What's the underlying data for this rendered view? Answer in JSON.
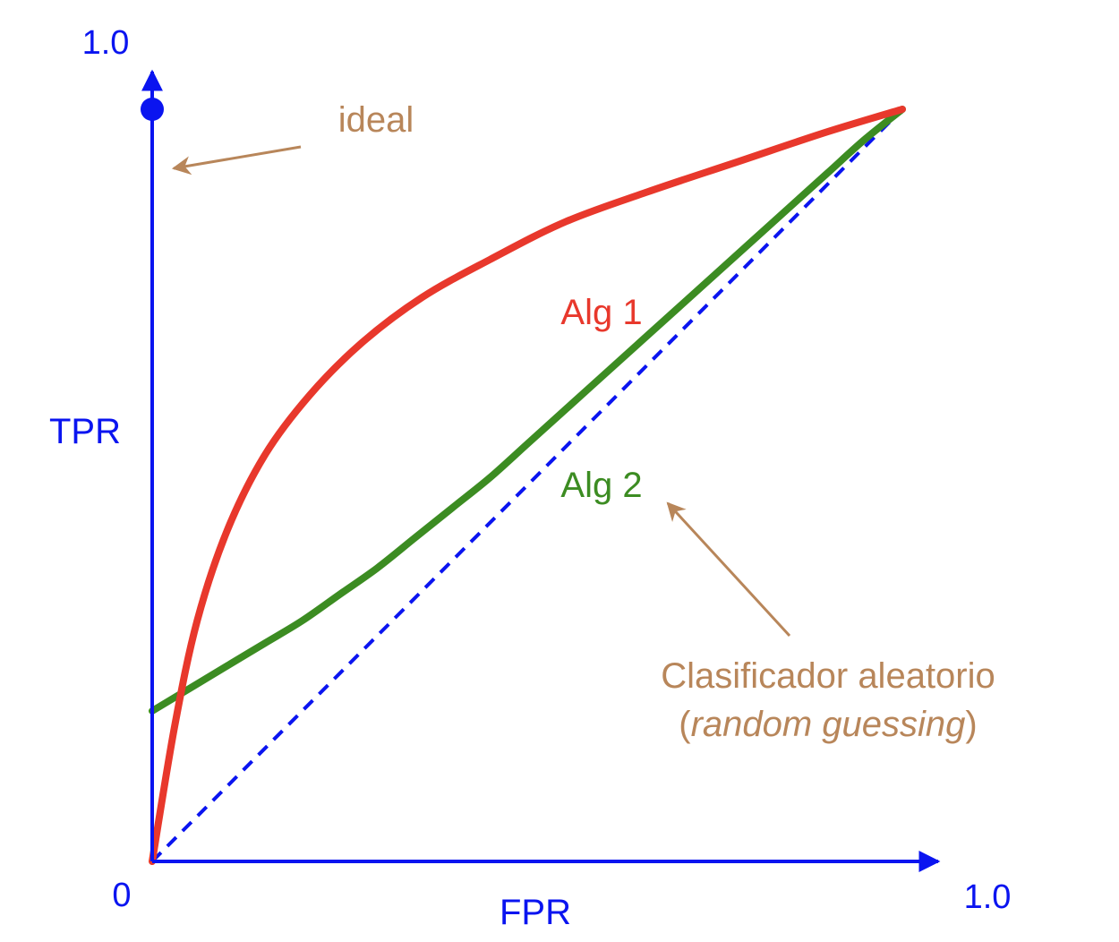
{
  "colors": {
    "axis": "#0a14f0",
    "alg1": "#e8382c",
    "alg2": "#3c8c22",
    "annotation": "#b8865a"
  },
  "chart_data": {
    "type": "line",
    "title": "",
    "xlabel": "FPR",
    "ylabel": "TPR",
    "xlim": [
      0,
      1
    ],
    "ylim": [
      0,
      1
    ],
    "ticks": {
      "origin": "0",
      "x_max": "1.0",
      "y_max": "1.0"
    },
    "grid": false,
    "series": [
      {
        "name": "Alg 1",
        "x": [
          0,
          0.03,
          0.06,
          0.1,
          0.15,
          0.21,
          0.28,
          0.36,
          0.45,
          0.55,
          0.66,
          0.78,
          0.9,
          1.0
        ],
        "y": [
          0,
          0.18,
          0.32,
          0.44,
          0.54,
          0.62,
          0.69,
          0.75,
          0.8,
          0.85,
          0.89,
          0.93,
          0.97,
          1.0
        ]
      },
      {
        "name": "Alg 2",
        "x": [
          0,
          0.05,
          0.1,
          0.15,
          0.2,
          0.25,
          0.3,
          0.35,
          0.4,
          0.45,
          0.5,
          0.55,
          0.6,
          0.65,
          0.7,
          0.75,
          0.8,
          0.85,
          0.9,
          0.95,
          1.0
        ],
        "y": [
          0.2,
          0.23,
          0.26,
          0.29,
          0.32,
          0.355,
          0.39,
          0.43,
          0.47,
          0.51,
          0.555,
          0.6,
          0.645,
          0.69,
          0.735,
          0.78,
          0.825,
          0.87,
          0.915,
          0.96,
          1.0
        ]
      },
      {
        "role": "random",
        "style": "dashed",
        "x": [
          0,
          1.0
        ],
        "y": [
          0,
          1.0
        ]
      }
    ],
    "points": [
      {
        "x": 0,
        "y": 1.0,
        "label": "ideal"
      }
    ],
    "annotations": [
      {
        "text": "ideal",
        "target": "ideal-point"
      },
      {
        "line1": "Clasificador aleatorio",
        "line2_open": "(",
        "line2_italic": "random guessing",
        "line2_close": ")",
        "target": "random-line"
      }
    ],
    "series_labels": [
      "Alg 1",
      "Alg 2"
    ]
  }
}
